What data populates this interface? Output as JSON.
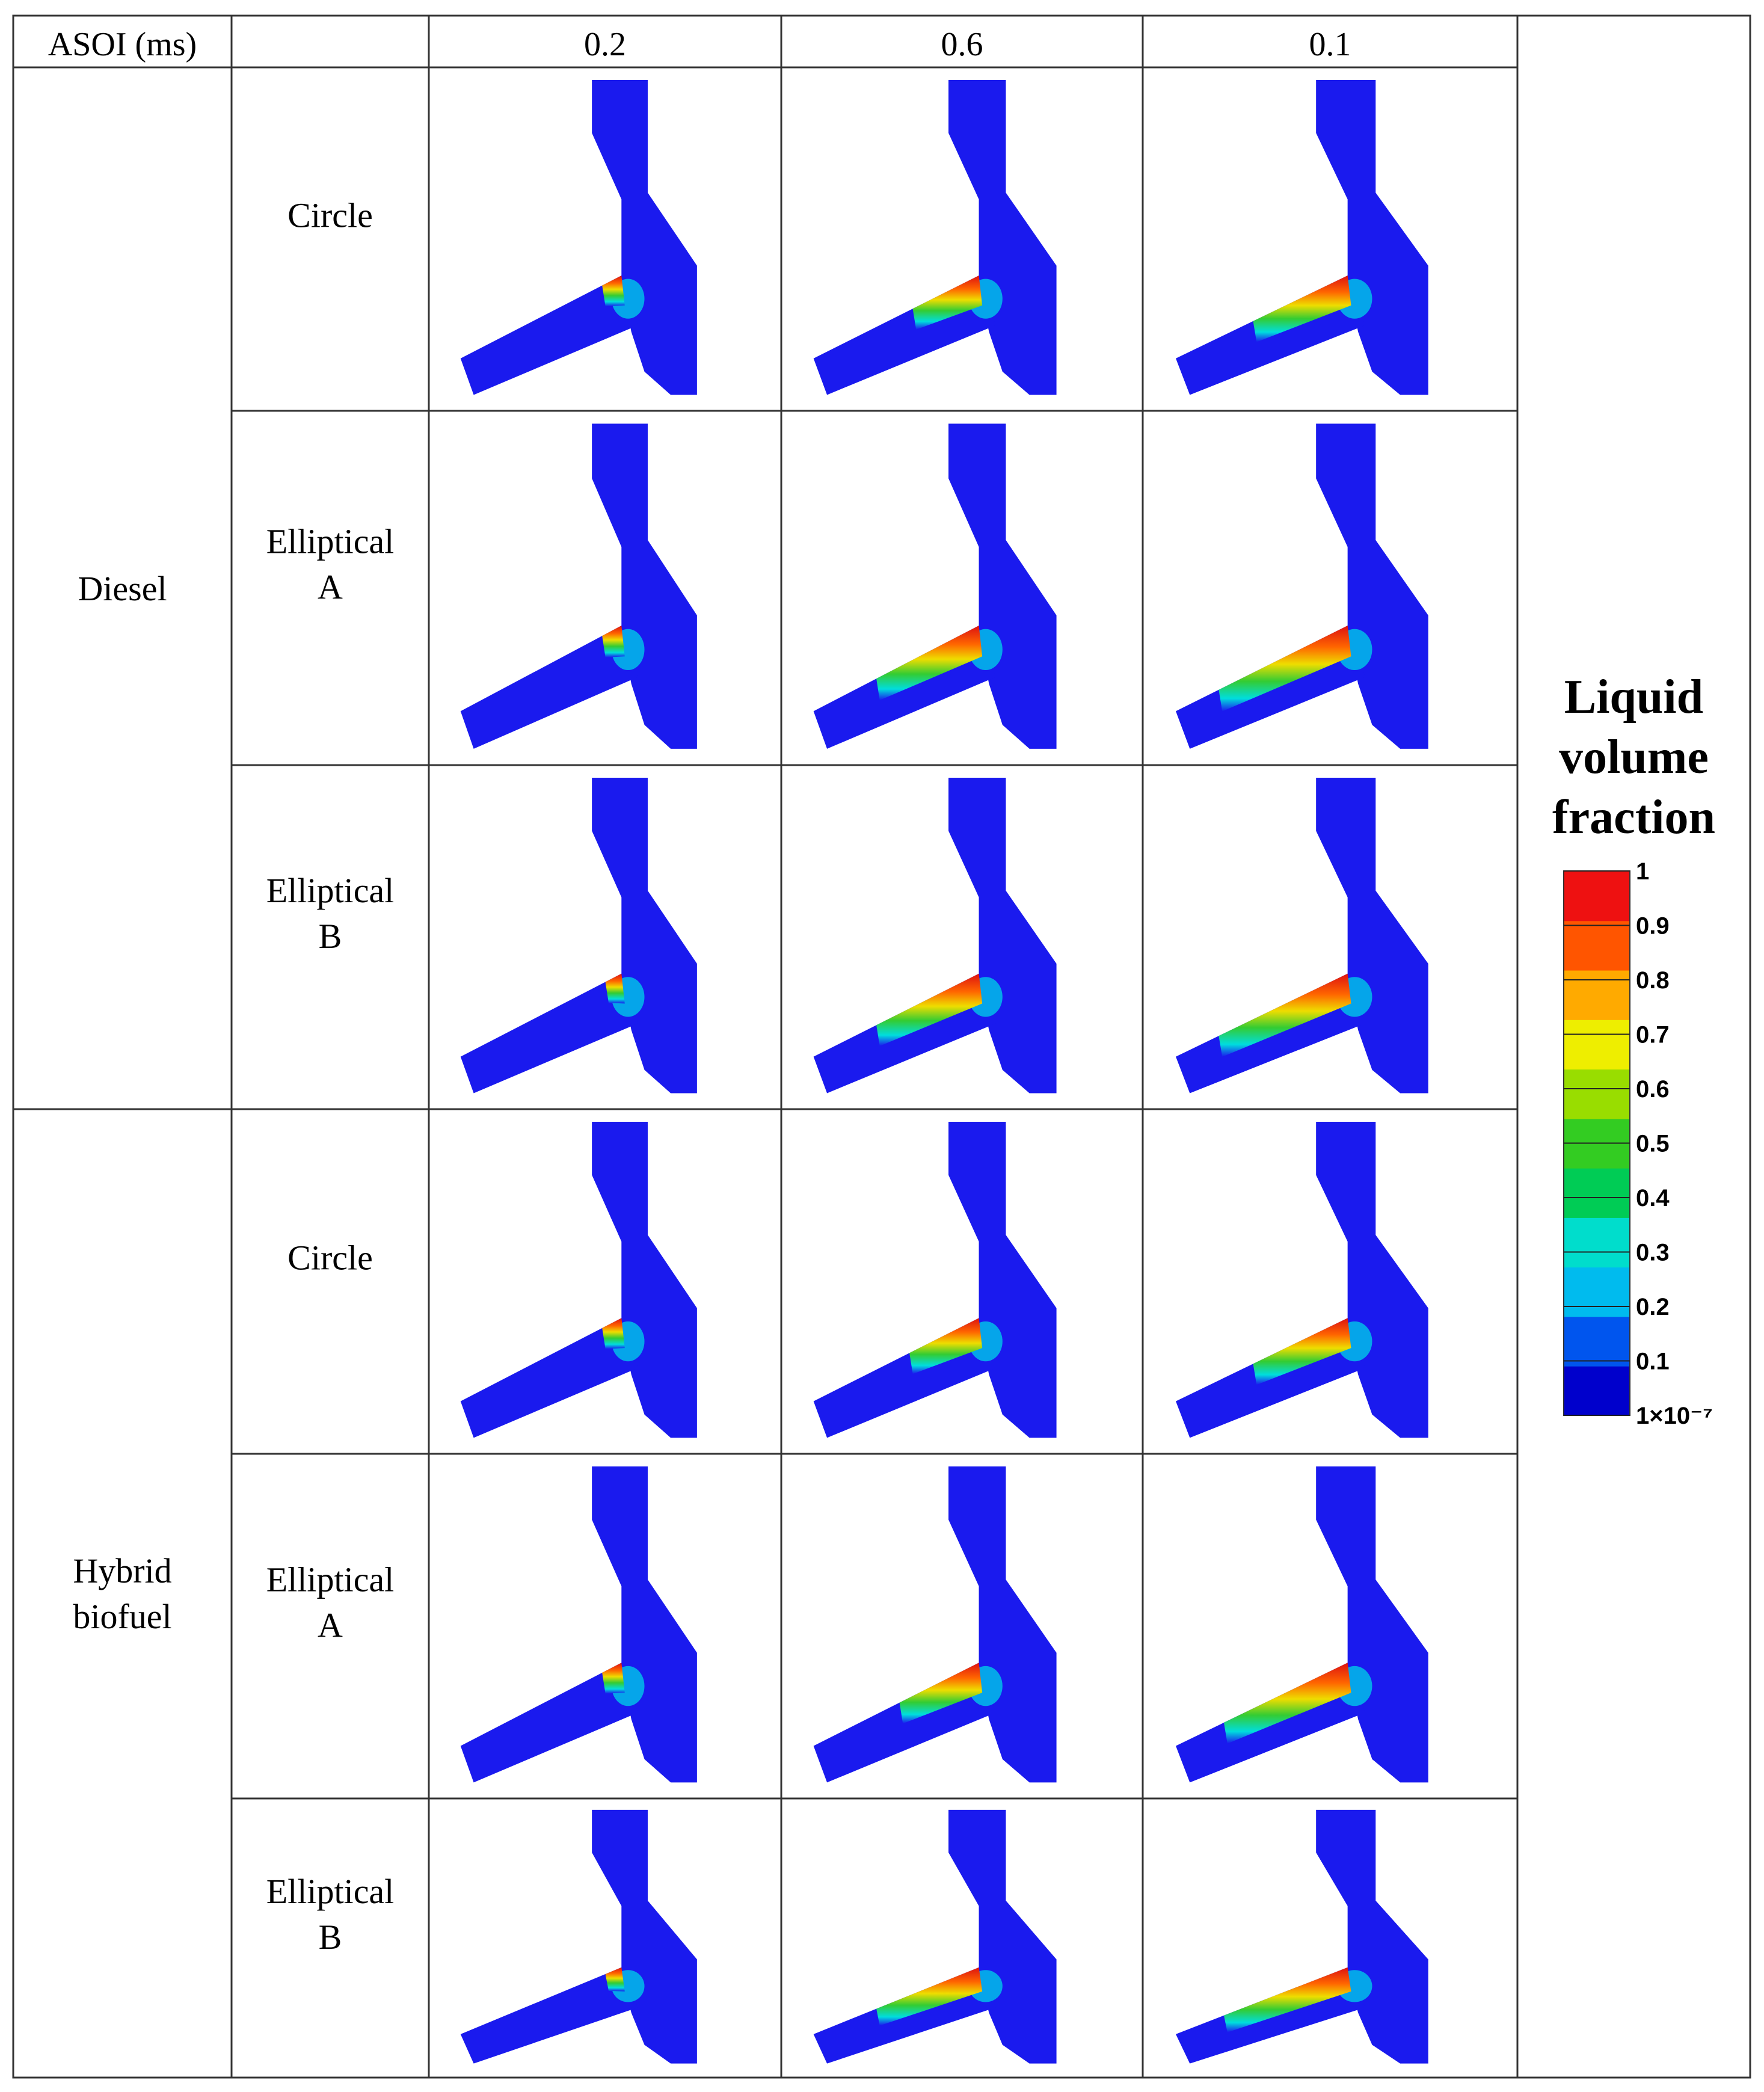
{
  "table": {
    "corner_label": "ASOI (ms)",
    "time_headers": [
      "0.2",
      "0.6",
      "0.1"
    ],
    "groups": [
      {
        "fuel": "Diesel",
        "fuel_lines": [
          "Diesel"
        ],
        "rows": [
          {
            "lines": [
              "Circle"
            ]
          },
          {
            "lines": [
              "Elliptical",
              "A"
            ]
          },
          {
            "lines": [
              "Elliptical",
              "B"
            ]
          }
        ]
      },
      {
        "fuel": "Hybrid biofuel",
        "fuel_lines": [
          "Hybrid",
          "biofuel"
        ],
        "rows": [
          {
            "lines": [
              "Circle"
            ]
          },
          {
            "lines": [
              "Elliptical",
              "A"
            ]
          },
          {
            "lines": [
              "Elliptical",
              "B"
            ]
          }
        ]
      }
    ]
  },
  "cells": [
    [
      0.12,
      0.4,
      0.55
    ],
    [
      0.12,
      0.62,
      0.75
    ],
    [
      0.1,
      0.62,
      0.75
    ],
    [
      0.12,
      0.42,
      0.55
    ],
    [
      0.12,
      0.48,
      0.72
    ],
    [
      0.1,
      0.62,
      0.72
    ]
  ],
  "legend": {
    "title_lines": [
      "Liquid",
      "volume",
      "fraction"
    ],
    "ticks": [
      "1",
      "0.9",
      "0.8",
      "0.7",
      "0.6",
      "0.5",
      "0.4",
      "0.3",
      "0.2",
      "0.1",
      "1×10⁻⁷"
    ],
    "colors": [
      "#0000cc",
      "#0055ee",
      "#00bbee",
      "#00ddcc",
      "#00cc55",
      "#33cc22",
      "#99dd00",
      "#eeee00",
      "#ffaa00",
      "#ff5500",
      "#ee1111"
    ],
    "background_color": "#1a1aee"
  }
}
